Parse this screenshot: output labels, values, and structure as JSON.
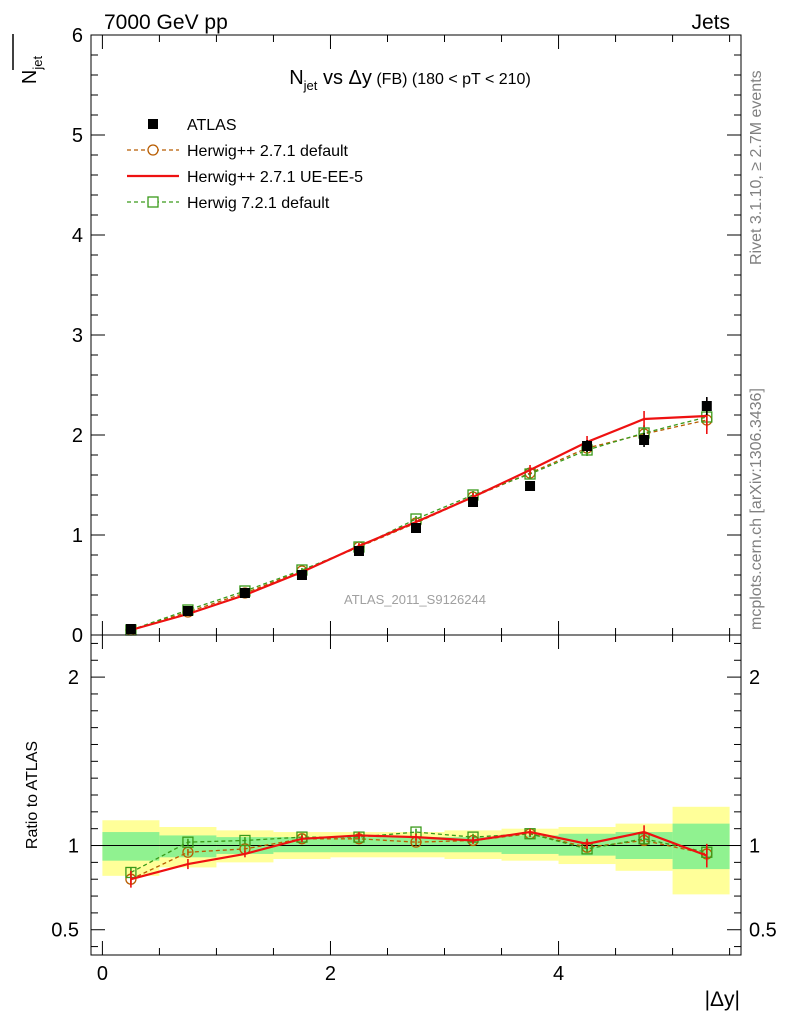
{
  "header": {
    "left": "7000 GeV pp",
    "right": "Jets"
  },
  "side_texts": {
    "rivet": "Rivet 3.1.10, ≥ 2.7M events",
    "mcplots": "mcplots.cern.ch [arXiv:1306.3436]"
  },
  "watermark": "ATLAS_2011_S9126244",
  "colors": {
    "atlas": "#000000",
    "herwigpp_default": "#b85c00",
    "herwigpp_ueee5": "#ee1111",
    "herwig7_default": "#3a9a1a",
    "band_inner": "#90f290",
    "band_outer": "#ffff99"
  },
  "chart_data": [
    {
      "type": "scatter",
      "panel": "main",
      "title": {
        "main": "N",
        "main_sub": "jet",
        "vs": " vs ",
        "delta_y": "Δy",
        "paren": " (FB)",
        "range": " (180 < pT < 210)"
      },
      "ylabel": {
        "main": "N",
        "sub": "jet"
      },
      "xlim": [
        -0.1,
        5.6
      ],
      "ylim": [
        0,
        6
      ],
      "yticks": [
        "0",
        "1",
        "2",
        "3",
        "4",
        "5",
        "6"
      ],
      "legend_position": "top-left",
      "x": [
        0.25,
        0.75,
        1.25,
        1.75,
        2.25,
        2.75,
        3.25,
        3.75,
        4.25,
        4.75,
        5.3
      ],
      "series": [
        {
          "name": "ATLAS",
          "marker": "filled-square",
          "values": [
            0.06,
            0.24,
            0.42,
            0.6,
            0.84,
            1.07,
            1.33,
            1.49,
            1.89,
            1.95,
            2.29
          ],
          "errors": [
            0.01,
            0.02,
            0.02,
            0.03,
            0.03,
            0.04,
            0.04,
            0.05,
            0.06,
            0.07,
            0.09
          ]
        },
        {
          "name": "Herwig++ 2.7.1 default",
          "marker": "open-circle-dashed",
          "values": [
            0.05,
            0.23,
            0.42,
            0.64,
            0.88,
            1.12,
            1.38,
            1.62,
            1.87,
            2.01,
            2.15
          ],
          "errors": [
            0.01,
            0.02,
            0.02,
            0.02,
            0.03,
            0.03,
            0.04,
            0.05,
            0.06,
            0.08,
            0.1
          ]
        },
        {
          "name": "Herwig++ 2.7.1 UE-EE-5",
          "marker": "solid-line",
          "values": [
            0.05,
            0.21,
            0.4,
            0.63,
            0.89,
            1.13,
            1.38,
            1.65,
            1.93,
            2.16,
            2.19
          ],
          "errors": [
            0.01,
            0.01,
            0.02,
            0.02,
            0.03,
            0.03,
            0.04,
            0.05,
            0.06,
            0.08,
            0.18
          ]
        },
        {
          "name": "Herwig 7.2.1 default",
          "marker": "open-square-dashed",
          "values": [
            0.05,
            0.25,
            0.44,
            0.65,
            0.88,
            1.16,
            1.4,
            1.61,
            1.85,
            2.02,
            2.18
          ],
          "errors": [
            0.01,
            0.02,
            0.02,
            0.02,
            0.03,
            0.03,
            0.04,
            0.05,
            0.06,
            0.08,
            0.1
          ]
        }
      ]
    },
    {
      "type": "line",
      "panel": "ratio",
      "ylabel": "Ratio to ATLAS",
      "xlabel": "|Δy|",
      "xlim": [
        -0.1,
        5.6
      ],
      "ylim": [
        0.35,
        2.25
      ],
      "xticks": [
        "0",
        "2",
        "4"
      ],
      "yticks": [
        "0.5",
        "1",
        "2"
      ],
      "bands": {
        "edges": [
          0,
          0.5,
          1.0,
          1.5,
          2.0,
          2.5,
          3.0,
          3.5,
          4.0,
          4.5,
          5.0,
          5.5
        ],
        "outer": [
          [
            0.82,
            1.15
          ],
          [
            0.87,
            1.11
          ],
          [
            0.9,
            1.09
          ],
          [
            0.92,
            1.08
          ],
          [
            0.93,
            1.08
          ],
          [
            0.93,
            1.08
          ],
          [
            0.92,
            1.09
          ],
          [
            0.91,
            1.1
          ],
          [
            0.89,
            1.11
          ],
          [
            0.85,
            1.13
          ],
          [
            0.71,
            1.23
          ]
        ],
        "inner": [
          [
            0.91,
            1.08
          ],
          [
            0.93,
            1.06
          ],
          [
            0.95,
            1.05
          ],
          [
            0.96,
            1.05
          ],
          [
            0.96,
            1.05
          ],
          [
            0.96,
            1.05
          ],
          [
            0.96,
            1.05
          ],
          [
            0.95,
            1.06
          ],
          [
            0.94,
            1.07
          ],
          [
            0.92,
            1.08
          ],
          [
            0.86,
            1.13
          ]
        ]
      },
      "x": [
        0.25,
        0.75,
        1.25,
        1.75,
        2.25,
        2.75,
        3.25,
        3.75,
        4.25,
        4.75,
        5.3
      ],
      "series": [
        {
          "name": "Herwig++ 2.7.1 default",
          "values": [
            0.8,
            0.96,
            0.98,
            1.04,
            1.04,
            1.02,
            1.03,
            1.07,
            0.99,
            1.03,
            0.95
          ],
          "errors": [
            0.03,
            0.02,
            0.02,
            0.02,
            0.02,
            0.02,
            0.02,
            0.02,
            0.02,
            0.03,
            0.04
          ]
        },
        {
          "name": "Herwig++ 2.7.1 UE-EE-5",
          "values": [
            0.8,
            0.89,
            0.95,
            1.04,
            1.06,
            1.05,
            1.03,
            1.08,
            1.01,
            1.08,
            0.94
          ],
          "errors": [
            0.05,
            0.03,
            0.02,
            0.02,
            0.02,
            0.02,
            0.02,
            0.02,
            0.03,
            0.04,
            0.07
          ]
        },
        {
          "name": "Herwig 7.2.1 default",
          "values": [
            0.84,
            1.02,
            1.03,
            1.05,
            1.05,
            1.08,
            1.05,
            1.07,
            0.98,
            1.04,
            0.96
          ],
          "errors": [
            0.03,
            0.02,
            0.02,
            0.02,
            0.02,
            0.02,
            0.02,
            0.02,
            0.02,
            0.03,
            0.04
          ]
        }
      ]
    }
  ]
}
